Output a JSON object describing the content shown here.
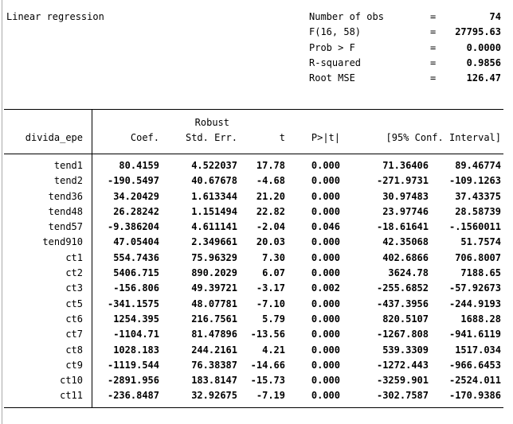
{
  "header": {
    "title": "Linear regression"
  },
  "summary_stats": [
    {
      "label": "Number of obs",
      "eq": "=",
      "value": "74"
    },
    {
      "label": "F(16, 58)",
      "eq": "=",
      "value": "27795.63"
    },
    {
      "label": "Prob > F",
      "eq": "=",
      "value": "0.0000"
    },
    {
      "label": "R-squared",
      "eq": "=",
      "value": "0.9856"
    },
    {
      "label": "Root MSE",
      "eq": "=",
      "value": "126.47"
    }
  ],
  "table": {
    "depvar": "divida_epe",
    "robust_label": "Robust",
    "col_coef": "Coef.",
    "col_se": "Std. Err.",
    "col_t": "t",
    "col_p": "P>|t|",
    "col_ci": "[95% Conf. Interval]",
    "rows": [
      {
        "var": "tend1",
        "coef": "80.4159",
        "se": "4.522037",
        "t": "17.78",
        "p": "0.000",
        "ci_low": "71.36406",
        "ci_high": "89.46774"
      },
      {
        "var": "tend2",
        "coef": "-190.5497",
        "se": "40.67678",
        "t": "-4.68",
        "p": "0.000",
        "ci_low": "-271.9731",
        "ci_high": "-109.1263"
      },
      {
        "var": "tend36",
        "coef": "34.20429",
        "se": "1.613344",
        "t": "21.20",
        "p": "0.000",
        "ci_low": "30.97483",
        "ci_high": "37.43375"
      },
      {
        "var": "tend48",
        "coef": "26.28242",
        "se": "1.151494",
        "t": "22.82",
        "p": "0.000",
        "ci_low": "23.97746",
        "ci_high": "28.58739"
      },
      {
        "var": "tend57",
        "coef": "-9.386204",
        "se": "4.611141",
        "t": "-2.04",
        "p": "0.046",
        "ci_low": "-18.61641",
        "ci_high": "-.1560011"
      },
      {
        "var": "tend910",
        "coef": "47.05404",
        "se": "2.349661",
        "t": "20.03",
        "p": "0.000",
        "ci_low": "42.35068",
        "ci_high": "51.7574"
      },
      {
        "var": "ct1",
        "coef": "554.7436",
        "se": "75.96329",
        "t": "7.30",
        "p": "0.000",
        "ci_low": "402.6866",
        "ci_high": "706.8007"
      },
      {
        "var": "ct2",
        "coef": "5406.715",
        "se": "890.2029",
        "t": "6.07",
        "p": "0.000",
        "ci_low": "3624.78",
        "ci_high": "7188.65"
      },
      {
        "var": "ct3",
        "coef": "-156.806",
        "se": "49.39721",
        "t": "-3.17",
        "p": "0.002",
        "ci_low": "-255.6852",
        "ci_high": "-57.92673"
      },
      {
        "var": "ct5",
        "coef": "-341.1575",
        "se": "48.07781",
        "t": "-7.10",
        "p": "0.000",
        "ci_low": "-437.3956",
        "ci_high": "-244.9193"
      },
      {
        "var": "ct6",
        "coef": "1254.395",
        "se": "216.7561",
        "t": "5.79",
        "p": "0.000",
        "ci_low": "820.5107",
        "ci_high": "1688.28"
      },
      {
        "var": "ct7",
        "coef": "-1104.71",
        "se": "81.47896",
        "t": "-13.56",
        "p": "0.000",
        "ci_low": "-1267.808",
        "ci_high": "-941.6119"
      },
      {
        "var": "ct8",
        "coef": "1028.183",
        "se": "244.2161",
        "t": "4.21",
        "p": "0.000",
        "ci_low": "539.3309",
        "ci_high": "1517.034"
      },
      {
        "var": "ct9",
        "coef": "-1119.544",
        "se": "76.38387",
        "t": "-14.66",
        "p": "0.000",
        "ci_low": "-1272.443",
        "ci_high": "-966.6453"
      },
      {
        "var": "ct10",
        "coef": "-2891.956",
        "se": "183.8147",
        "t": "-15.73",
        "p": "0.000",
        "ci_low": "-3259.901",
        "ci_high": "-2524.011"
      },
      {
        "var": "ct11",
        "coef": "-236.8487",
        "se": "32.92675",
        "t": "-7.19",
        "p": "0.000",
        "ci_low": "-302.7587",
        "ci_high": "-170.9386"
      }
    ]
  },
  "colors": {
    "background": "#ffffff",
    "text": "#000000",
    "rule": "#000000",
    "window_border": "#a9a9a9"
  }
}
